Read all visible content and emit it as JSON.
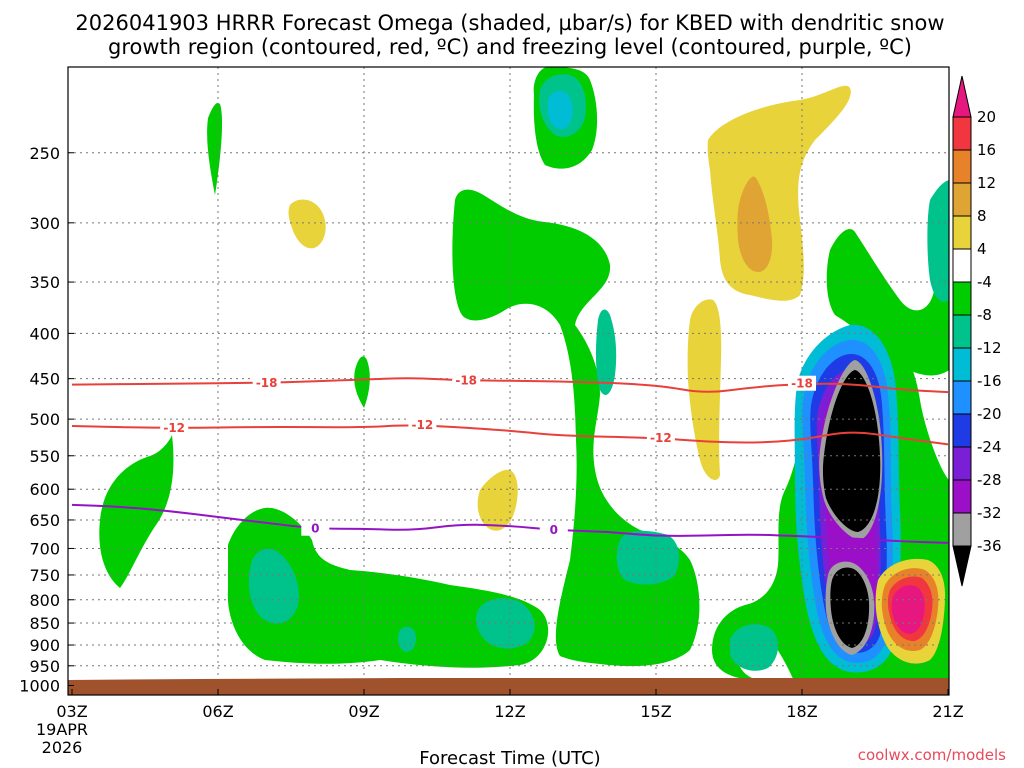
{
  "title": {
    "line1": "2026041903 HRRR Forecast Omega (shaded, µbar/s) for KBED with dendritic snow",
    "line2": "growth region (contoured, red, ºC) and freezing level (contoured, purple, ºC)"
  },
  "x_axis": {
    "title": "Forecast Time (UTC)",
    "start_date_line1": "19APR",
    "start_date_line2": "2026"
  },
  "credit": "coolwx.com/models",
  "colorbar": {
    "labels": [
      "20",
      "16",
      "12",
      "8",
      "4",
      "-4",
      "-8",
      "-12",
      "-16",
      "-20",
      "-24",
      "-28",
      "-32",
      "-36"
    ]
  },
  "chart_data": {
    "type": "heatmap",
    "title": "2026041903 HRRR Forecast Omega (shaded, µbar/s) for KBED with dendritic snow growth region (contoured, red, ºC) and freezing level (contoured, purple, ºC)",
    "xlabel": "Forecast Time (UTC)",
    "ylabel": "",
    "x_ticks": [
      "03Z",
      "06Z",
      "09Z",
      "12Z",
      "15Z",
      "18Z",
      "21Z"
    ],
    "x_hours": [
      3,
      6,
      9,
      12,
      15,
      18,
      21
    ],
    "xlim": [
      3,
      21
    ],
    "y_ticks": [
      250,
      300,
      350,
      400,
      450,
      500,
      550,
      600,
      650,
      700,
      750,
      800,
      850,
      900,
      950,
      1000
    ],
    "ylim_hpa": [
      1025,
      200
    ],
    "y_scale": "log-pressure (inverted)",
    "grid": true,
    "colors": {
      "ground": "#a0522d",
      "contour_red": "#e8403a",
      "contour_purple": "#9413c4"
    },
    "colorbar_levels": [
      {
        "range": [
          20,
          null
        ],
        "color": "#e6177e"
      },
      {
        "range": [
          16,
          20
        ],
        "color": "#f2363f"
      },
      {
        "range": [
          12,
          16
        ],
        "color": "#e8822a"
      },
      {
        "range": [
          8,
          12
        ],
        "color": "#e0a435"
      },
      {
        "range": [
          4,
          8
        ],
        "color": "#e8d33a"
      },
      {
        "range": [
          -4,
          4
        ],
        "color": "#ffffff"
      },
      {
        "range": [
          -8,
          -4
        ],
        "color": "#00cc00"
      },
      {
        "range": [
          -12,
          -8
        ],
        "color": "#00c38c"
      },
      {
        "range": [
          -16,
          -12
        ],
        "color": "#00bcd4"
      },
      {
        "range": [
          -20,
          -16
        ],
        "color": "#1e90ff"
      },
      {
        "range": [
          -24,
          -20
        ],
        "color": "#1f3be5"
      },
      {
        "range": [
          -28,
          -24
        ],
        "color": "#7a1fd6"
      },
      {
        "range": [
          -32,
          -28
        ],
        "color": "#9b0fc9"
      },
      {
        "range": [
          -36,
          -32
        ],
        "color": "#a0a0a0"
      },
      {
        "range": [
          null,
          -36
        ],
        "color": "#000000"
      }
    ],
    "contours": [
      {
        "value": -18,
        "label": "-18",
        "color": "contour_red",
        "label_hours": [
          7.0,
          11.1,
          18.0
        ],
        "points": [
          [
            3,
            457
          ],
          [
            5,
            456
          ],
          [
            7,
            455
          ],
          [
            9,
            451
          ],
          [
            10,
            449
          ],
          [
            11,
            452
          ],
          [
            13,
            453
          ],
          [
            15,
            457
          ],
          [
            16,
            468
          ],
          [
            17,
            460
          ],
          [
            18,
            456
          ],
          [
            19,
            456
          ],
          [
            20,
            463
          ],
          [
            21,
            466
          ]
        ]
      },
      {
        "value": -12,
        "label": "-12",
        "color": "contour_red",
        "label_hours": [
          5.1,
          10.2,
          15.1
        ],
        "points": [
          [
            3,
            509
          ],
          [
            5,
            512
          ],
          [
            7,
            510
          ],
          [
            9,
            511
          ],
          [
            10,
            507
          ],
          [
            12,
            515
          ],
          [
            13,
            522
          ],
          [
            15,
            525
          ],
          [
            16,
            530
          ],
          [
            17,
            532
          ],
          [
            18,
            528
          ],
          [
            19,
            515
          ],
          [
            20,
            525
          ],
          [
            21,
            534
          ]
        ]
      },
      {
        "value": 0,
        "label": "0",
        "color": "contour_purple",
        "label_hours": [
          8.0,
          12.9
        ],
        "points": [
          [
            3,
            625
          ],
          [
            4,
            628
          ],
          [
            5,
            635
          ],
          [
            6,
            645
          ],
          [
            7,
            655
          ],
          [
            8,
            665
          ],
          [
            9,
            665
          ],
          [
            10,
            668
          ],
          [
            11,
            657
          ],
          [
            12,
            660
          ],
          [
            13,
            668
          ],
          [
            14,
            670
          ],
          [
            15,
            678
          ],
          [
            16,
            677
          ],
          [
            17,
            675
          ],
          [
            18,
            678
          ],
          [
            19,
            682
          ],
          [
            20,
            687
          ],
          [
            21,
            690
          ]
        ]
      }
    ],
    "shaded_regions": [
      {
        "level": -8,
        "hour_range": [
          3.2,
          5.1
        ],
        "pressure_range": [
          540,
          790
        ]
      },
      {
        "level": -8,
        "hour_range": [
          6.0,
          6.3
        ],
        "pressure_range": [
          210,
          285
        ]
      },
      {
        "level": -8,
        "hour_range": [
          6.9,
          12.6
        ],
        "pressure_range": [
          645,
          970
        ]
      },
      {
        "level": -8,
        "hour_range": [
          8.9,
          9.2
        ],
        "pressure_range": [
          435,
          495
        ]
      },
      {
        "level": -8,
        "hour_range": [
          10.9,
          14.9
        ],
        "pressure_range": [
          275,
          960
        ]
      },
      {
        "level": -8,
        "hour_range": [
          12.4,
          13.8
        ],
        "pressure_range": [
          200,
          265
        ]
      },
      {
        "level": -8,
        "hour_range": [
          16.7,
          21.0
        ],
        "pressure_range": [
          300,
          1000
        ]
      },
      {
        "level": -12,
        "hour_range": [
          7.3,
          8.6
        ],
        "pressure_range": [
          700,
          860
        ]
      },
      {
        "level": -12,
        "hour_range": [
          12.8,
          13.4
        ],
        "pressure_range": [
          200,
          240
        ]
      },
      {
        "level": -12,
        "hour_range": [
          14.3,
          15.9
        ],
        "pressure_range": [
          700,
          800
        ]
      },
      {
        "level": 4,
        "hour_range": [
          6.5,
          7.2
        ],
        "pressure_range": [
          285,
          330
        ]
      },
      {
        "level": 4,
        "hour_range": [
          11.5,
          12.0
        ],
        "pressure_range": [
          590,
          675
        ]
      },
      {
        "level": 4,
        "hour_range": [
          15.6,
          16.5
        ],
        "pressure_range": [
          370,
          580
        ]
      },
      {
        "level": 4,
        "hour_range": [
          16.0,
          18.8
        ],
        "pressure_range": [
          200,
          410
        ]
      },
      {
        "level": 8,
        "hour_range": [
          16.6,
          17.0
        ],
        "pressure_range": [
          280,
          355
        ]
      },
      {
        "level": 20,
        "hour_range": [
          20.0,
          20.6
        ],
        "pressure_range": [
          760,
          900
        ]
      },
      {
        "level": -36,
        "hour_range": [
          18.6,
          19.5
        ],
        "pressure_range": [
          460,
          650
        ]
      },
      {
        "level": -36,
        "hour_range": [
          18.7,
          19.3
        ],
        "pressure_range": [
          820,
          950
        ]
      }
    ]
  }
}
